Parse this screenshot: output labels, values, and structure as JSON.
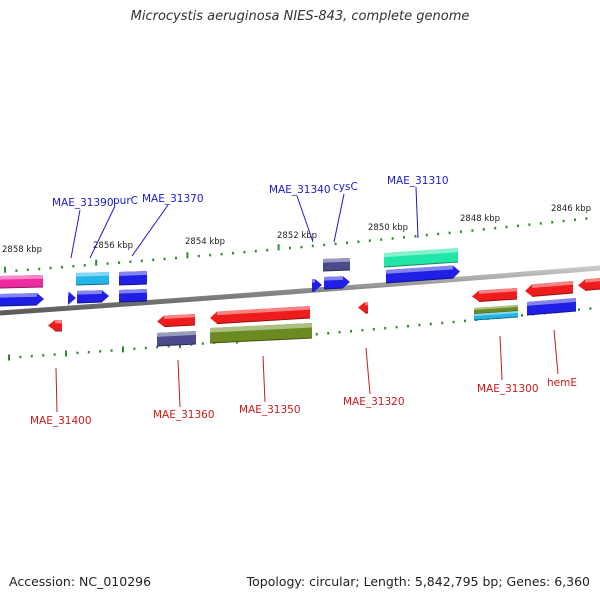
{
  "title": "Microcystis aeruginosa NIES-843, complete genome",
  "footer": {
    "accession": "Accession: NC_010296",
    "summary": "Topology: circular; Length: 5,842,795 bp; Genes: 6,360"
  },
  "scale_labels": [
    "2858 kbp",
    "2856 kbp",
    "2854 kbp",
    "2852 kbp",
    "2850 kbp",
    "2848 kbp",
    "2846 kbp"
  ],
  "top_gene_labels": [
    "MAE_31390",
    "purC",
    "MAE_31370",
    "MAE_31340",
    "cysC",
    "MAE_31310"
  ],
  "bottom_gene_labels": [
    "MAE_31400",
    "MAE_31360",
    "MAE_31350",
    "MAE_31320",
    "MAE_31300",
    "hemE"
  ],
  "colors": {
    "forward_label": "#1a1acc",
    "reverse_label": "#cc1a1a",
    "backbone": "#7a7a7a",
    "ticks": "#2e8b2e",
    "cds_forward": "#1f1fe6",
    "cds_reverse": "#ee1c1c",
    "light_blue": "#22b5e6",
    "magenta": "#ee2aa0",
    "teal": "#22e6a8",
    "slate": "#4a4a8c",
    "olive": "#6b8a1f"
  }
}
